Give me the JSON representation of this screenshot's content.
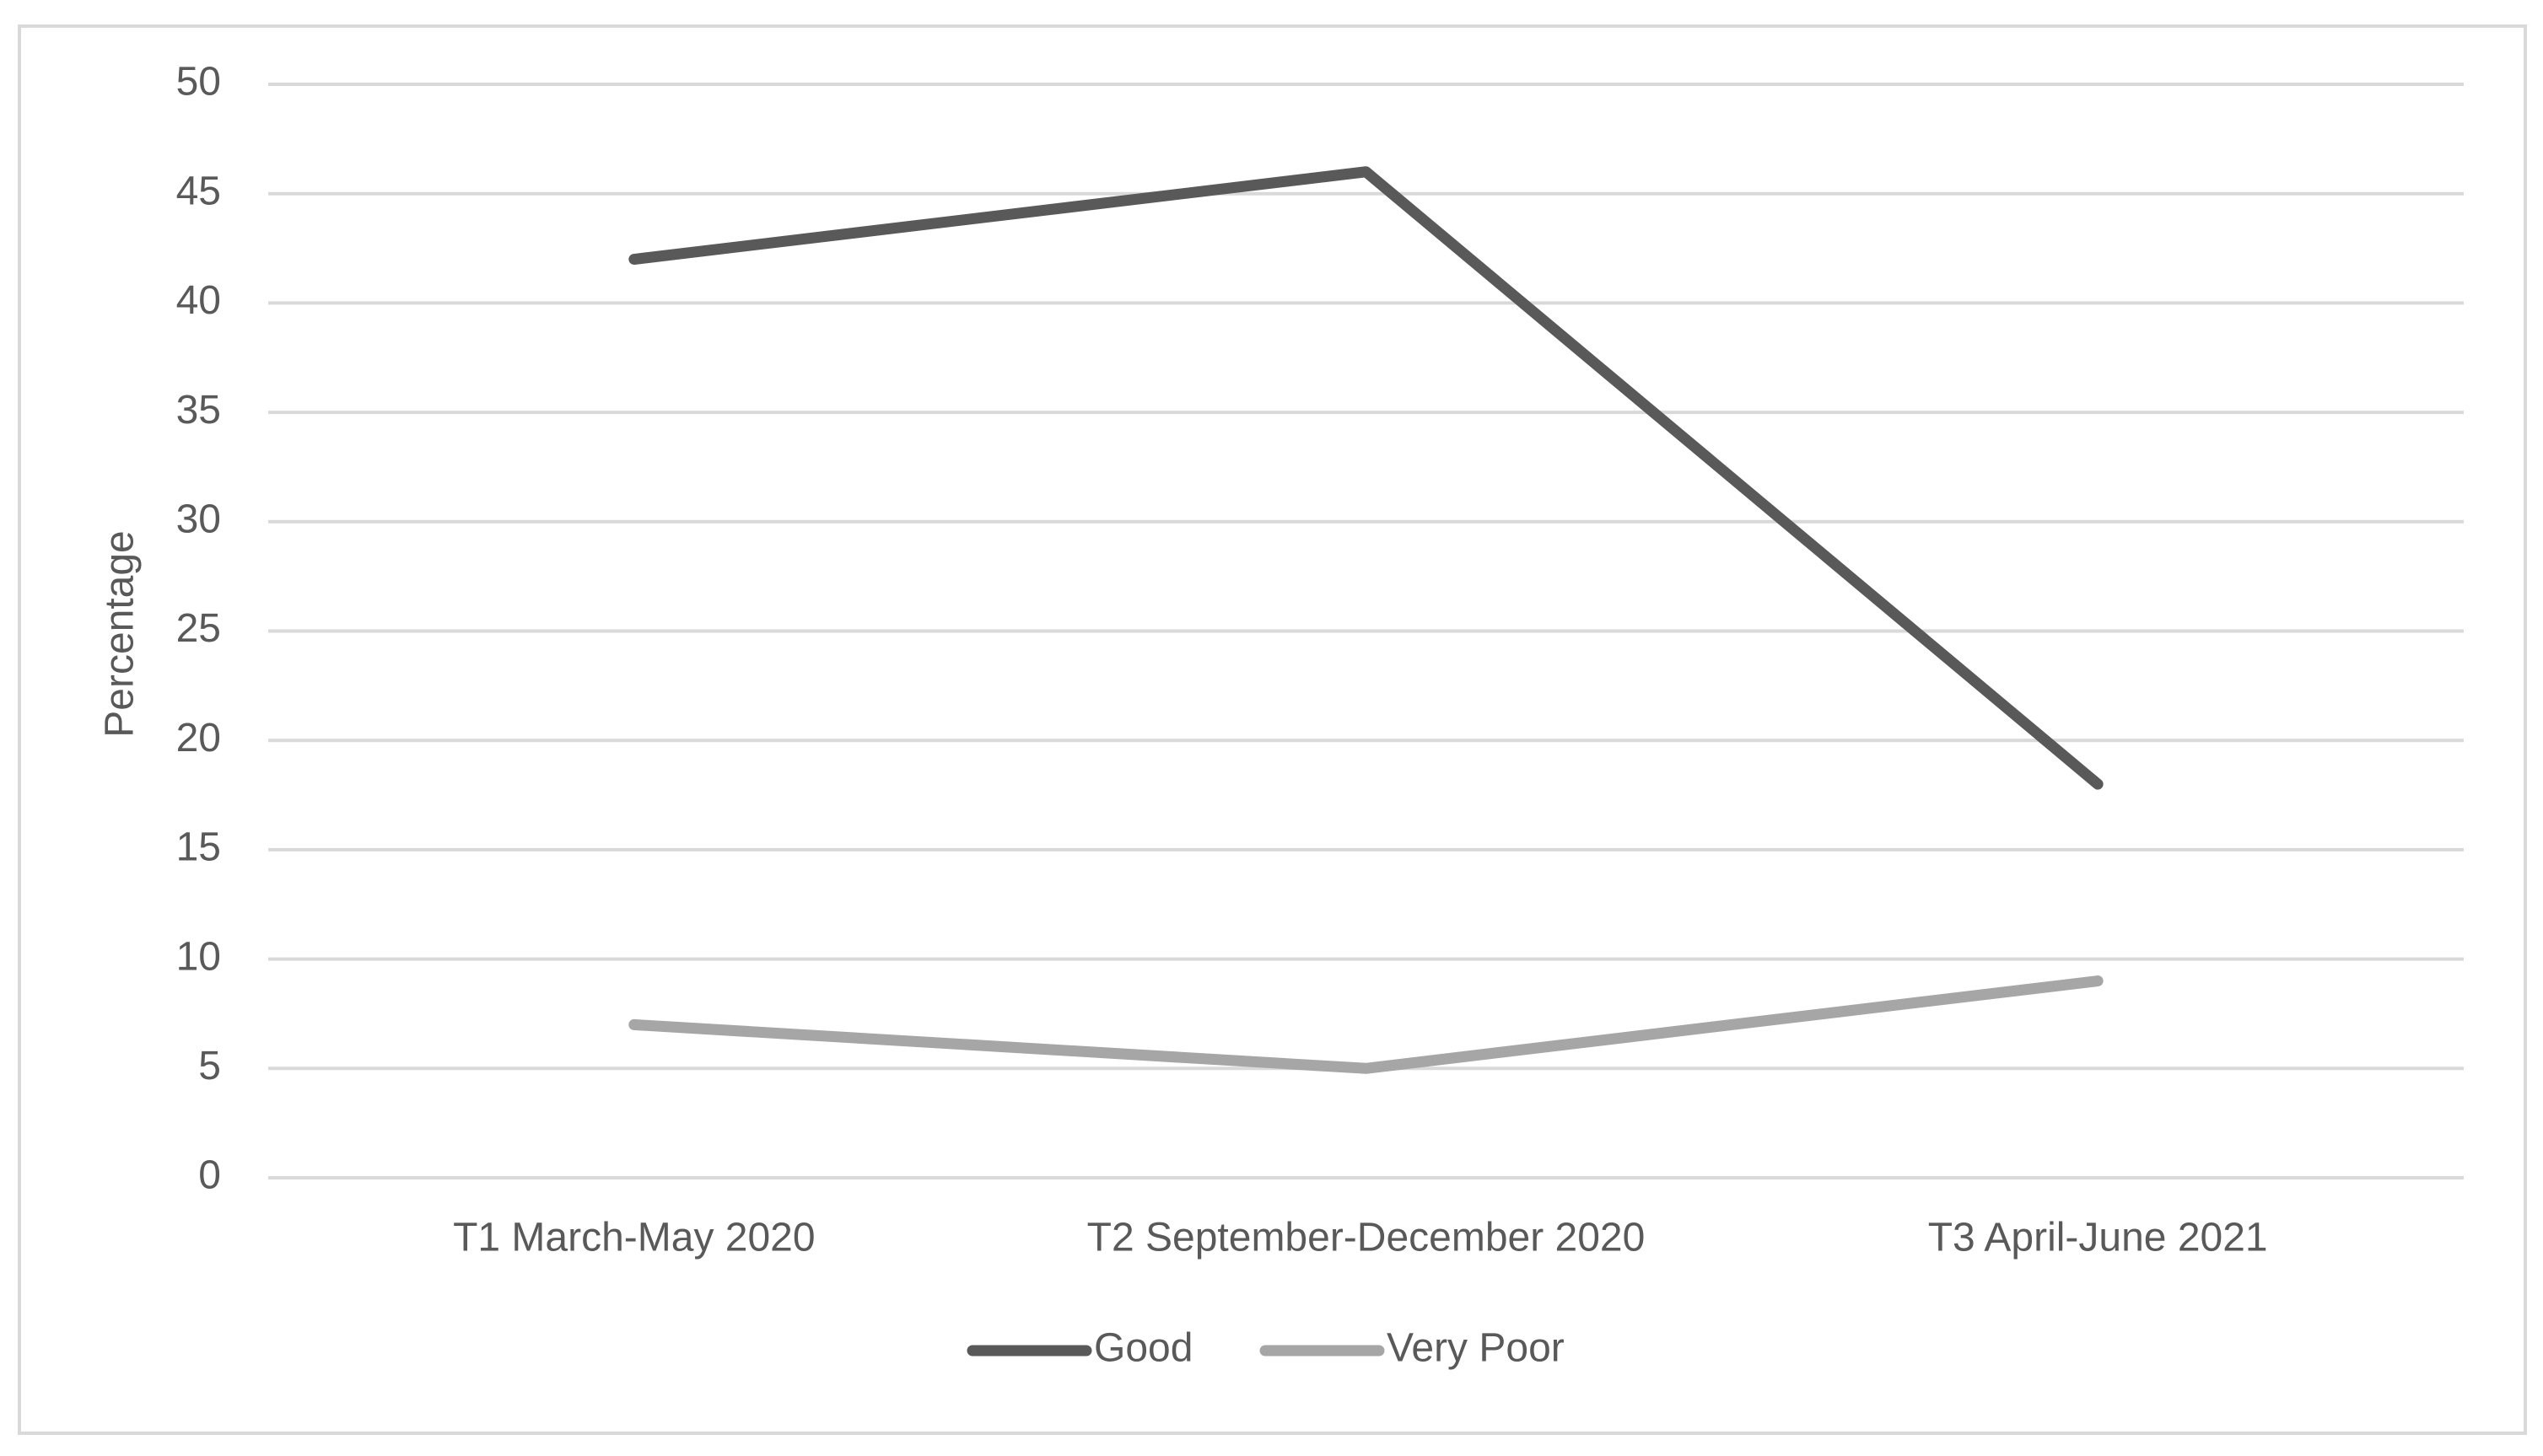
{
  "chart_data": {
    "type": "line",
    "y_label": "Percentage",
    "categories": [
      "T1 March-May 2020",
      "T2 September-December 2020",
      "T3 April-June 2021"
    ],
    "series": [
      {
        "name": "Good",
        "color": "#595959",
        "values": [
          42,
          46,
          18
        ]
      },
      {
        "name": "Very Poor",
        "color": "#a6a6a6",
        "values": [
          7,
          5,
          9
        ]
      }
    ],
    "ylim": [
      0,
      50
    ],
    "yticks": [
      0,
      5,
      10,
      15,
      20,
      25,
      30,
      35,
      40,
      45,
      50
    ],
    "grid": true,
    "legend": "bottom"
  }
}
